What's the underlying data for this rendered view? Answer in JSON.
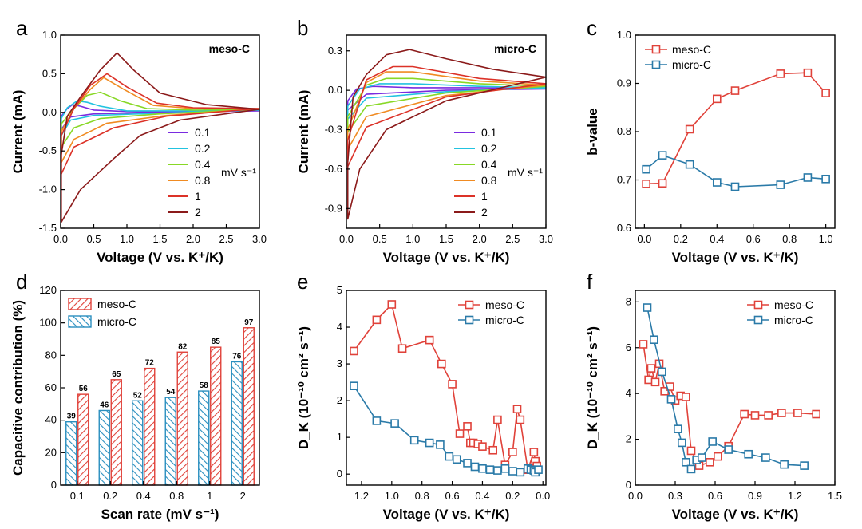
{
  "panel_letters": [
    "a",
    "b",
    "c",
    "d",
    "e",
    "f"
  ],
  "chart_data": [
    {
      "panel": "a",
      "type": "line",
      "label": "meso-C",
      "xlabel": "Voltage (V vs. K⁺/K)",
      "ylabel": "Current (mA)",
      "xlim": [
        0,
        3.0
      ],
      "ylim": [
        -1.5,
        1.0
      ],
      "xticks": [
        0.0,
        0.5,
        1.0,
        1.5,
        2.0,
        2.5,
        3.0
      ],
      "yticks": [
        -1.5,
        -1.0,
        -0.5,
        0.0,
        0.5,
        1.0
      ],
      "legend_unit": "mV s⁻¹",
      "legend_position": "lower-right",
      "series": [
        {
          "name": "0.1",
          "color": "#7a2be0",
          "values": [
            [
              0.01,
              -0.22
            ],
            [
              0.15,
              -0.06
            ],
            [
              0.5,
              -0.02
            ],
            [
              1.5,
              0.0
            ],
            [
              3.0,
              0.02
            ],
            [
              2.0,
              0.01
            ],
            [
              1.0,
              0.01
            ],
            [
              0.5,
              0.03
            ],
            [
              0.3,
              0.08
            ],
            [
              0.18,
              0.1
            ],
            [
              0.1,
              0.05
            ],
            [
              0.01,
              -0.05
            ]
          ]
        },
        {
          "name": "0.2",
          "color": "#22c3e0",
          "values": [
            [
              0.01,
              -0.3
            ],
            [
              0.15,
              -0.1
            ],
            [
              0.5,
              -0.04
            ],
            [
              1.5,
              -0.01
            ],
            [
              3.0,
              0.03
            ],
            [
              2.0,
              0.02
            ],
            [
              1.0,
              0.02
            ],
            [
              0.6,
              0.08
            ],
            [
              0.4,
              0.13
            ],
            [
              0.25,
              0.15
            ],
            [
              0.1,
              0.06
            ],
            [
              0.01,
              -0.08
            ]
          ]
        },
        {
          "name": "0.4",
          "color": "#88d826",
          "values": [
            [
              0.01,
              -0.45
            ],
            [
              0.2,
              -0.2
            ],
            [
              0.6,
              -0.08
            ],
            [
              1.5,
              -0.02
            ],
            [
              3.0,
              0.04
            ],
            [
              2.0,
              0.03
            ],
            [
              1.3,
              0.05
            ],
            [
              0.9,
              0.15
            ],
            [
              0.6,
              0.26
            ],
            [
              0.4,
              0.22
            ],
            [
              0.2,
              0.05
            ],
            [
              0.01,
              -0.15
            ]
          ]
        },
        {
          "name": "0.8",
          "color": "#f08b22",
          "values": [
            [
              0.01,
              -0.65
            ],
            [
              0.2,
              -0.35
            ],
            [
              0.7,
              -0.14
            ],
            [
              1.6,
              -0.04
            ],
            [
              3.0,
              0.05
            ],
            [
              2.0,
              0.05
            ],
            [
              1.4,
              0.09
            ],
            [
              0.95,
              0.3
            ],
            [
              0.65,
              0.45
            ],
            [
              0.45,
              0.3
            ],
            [
              0.2,
              0.05
            ],
            [
              0.01,
              -0.25
            ]
          ]
        },
        {
          "name": "1",
          "color": "#dc3228",
          "values": [
            [
              0.01,
              -0.8
            ],
            [
              0.2,
              -0.45
            ],
            [
              0.8,
              -0.2
            ],
            [
              1.6,
              -0.05
            ],
            [
              3.0,
              0.05
            ],
            [
              2.0,
              0.06
            ],
            [
              1.45,
              0.12
            ],
            [
              1.0,
              0.33
            ],
            [
              0.7,
              0.5
            ],
            [
              0.45,
              0.35
            ],
            [
              0.2,
              0.05
            ],
            [
              0.01,
              -0.3
            ]
          ]
        },
        {
          "name": "2",
          "color": "#8b1a1a",
          "values": [
            [
              0.01,
              -1.42
            ],
            [
              0.3,
              -1.0
            ],
            [
              0.8,
              -0.6
            ],
            [
              1.2,
              -0.3
            ],
            [
              1.8,
              -0.1
            ],
            [
              3.0,
              0.04
            ],
            [
              2.2,
              0.1
            ],
            [
              1.5,
              0.25
            ],
            [
              1.1,
              0.55
            ],
            [
              0.85,
              0.77
            ],
            [
              0.6,
              0.55
            ],
            [
              0.3,
              0.2
            ],
            [
              0.1,
              -0.05
            ],
            [
              0.01,
              -0.55
            ]
          ]
        }
      ]
    },
    {
      "panel": "b",
      "type": "line",
      "label": "micro-C",
      "xlabel": "Voltage (V vs. K⁺/K)",
      "ylabel": "Current (mA)",
      "xlim": [
        0,
        3.0
      ],
      "ylim": [
        -1.05,
        0.42
      ],
      "xticks": [
        0.0,
        0.5,
        1.0,
        1.5,
        2.0,
        2.5,
        3.0
      ],
      "yticks": [
        -0.9,
        -0.6,
        -0.3,
        0.0,
        0.3
      ],
      "legend_unit": "mV s⁻¹",
      "legend_position": "lower-right",
      "series": [
        {
          "name": "0.1",
          "color": "#7a2be0",
          "values": [
            [
              0.02,
              -0.15
            ],
            [
              0.3,
              -0.03
            ],
            [
              1.5,
              0.0
            ],
            [
              3.0,
              0.01
            ],
            [
              2.0,
              0.02
            ],
            [
              1.0,
              0.02
            ],
            [
              0.4,
              0.03
            ],
            [
              0.15,
              0.01
            ],
            [
              0.02,
              -0.08
            ]
          ]
        },
        {
          "name": "0.2",
          "color": "#22c3e0",
          "values": [
            [
              0.02,
              -0.22
            ],
            [
              0.3,
              -0.06
            ],
            [
              1.5,
              -0.01
            ],
            [
              3.0,
              0.02
            ],
            [
              2.0,
              0.03
            ],
            [
              1.0,
              0.05
            ],
            [
              0.5,
              0.05
            ],
            [
              0.2,
              0.01
            ],
            [
              0.02,
              -0.12
            ]
          ]
        },
        {
          "name": "0.4",
          "color": "#88d826",
          "values": [
            [
              0.02,
              -0.32
            ],
            [
              0.3,
              -0.12
            ],
            [
              1.5,
              -0.02
            ],
            [
              3.0,
              0.03
            ],
            [
              2.0,
              0.05
            ],
            [
              1.0,
              0.09
            ],
            [
              0.6,
              0.09
            ],
            [
              0.3,
              0.04
            ],
            [
              0.02,
              -0.2
            ]
          ]
        },
        {
          "name": "0.8",
          "color": "#f08b22",
          "values": [
            [
              0.02,
              -0.45
            ],
            [
              0.3,
              -0.2
            ],
            [
              1.5,
              -0.04
            ],
            [
              3.0,
              0.04
            ],
            [
              2.0,
              0.07
            ],
            [
              1.0,
              0.14
            ],
            [
              0.6,
              0.14
            ],
            [
              0.3,
              0.06
            ],
            [
              0.02,
              -0.3
            ]
          ]
        },
        {
          "name": "1",
          "color": "#dc3228",
          "values": [
            [
              0.02,
              -0.58
            ],
            [
              0.3,
              -0.28
            ],
            [
              1.5,
              -0.05
            ],
            [
              3.0,
              0.05
            ],
            [
              2.0,
              0.09
            ],
            [
              1.0,
              0.18
            ],
            [
              0.7,
              0.18
            ],
            [
              0.3,
              0.08
            ],
            [
              0.02,
              -0.38
            ]
          ]
        },
        {
          "name": "2",
          "color": "#8b1a1a",
          "values": [
            [
              0.02,
              -0.98
            ],
            [
              0.2,
              -0.6
            ],
            [
              0.6,
              -0.3
            ],
            [
              1.5,
              -0.08
            ],
            [
              3.0,
              0.1
            ],
            [
              2.2,
              0.16
            ],
            [
              1.5,
              0.24
            ],
            [
              0.95,
              0.31
            ],
            [
              0.6,
              0.27
            ],
            [
              0.3,
              0.12
            ],
            [
              0.1,
              -0.05
            ],
            [
              0.02,
              -0.55
            ]
          ]
        }
      ]
    },
    {
      "panel": "c",
      "type": "line",
      "xlabel": "Voltage (V vs. K⁺/K)",
      "ylabel": "b-value",
      "xlim": [
        -0.05,
        1.05
      ],
      "ylim": [
        0.6,
        1.0
      ],
      "xticks": [
        0.0,
        0.2,
        0.4,
        0.6,
        0.8,
        1.0
      ],
      "yticks": [
        0.6,
        0.7,
        0.8,
        0.9,
        1.0
      ],
      "legend_position": "top-left",
      "markers": "open-square",
      "series": [
        {
          "name": "meso-C",
          "color": "#e0423a",
          "x": [
            0.01,
            0.1,
            0.25,
            0.4,
            0.5,
            0.75,
            0.9,
            1.0
          ],
          "values": [
            0.692,
            0.693,
            0.805,
            0.868,
            0.885,
            0.92,
            0.922,
            0.88
          ]
        },
        {
          "name": "micro-C",
          "color": "#2a7aa8",
          "x": [
            0.01,
            0.1,
            0.25,
            0.4,
            0.5,
            0.75,
            0.9,
            1.0
          ],
          "values": [
            0.722,
            0.751,
            0.732,
            0.695,
            0.686,
            0.69,
            0.705,
            0.702
          ]
        }
      ]
    },
    {
      "panel": "d",
      "type": "bar",
      "xlabel": "Scan rate (mV s⁻¹)",
      "ylabel": "Capacitive contribution (%)",
      "ylim": [
        0,
        120
      ],
      "yticks": [
        0,
        20,
        40,
        60,
        80,
        100,
        120
      ],
      "categories": [
        "0.1",
        "0.2",
        "0.4",
        "0.8",
        "1",
        "2"
      ],
      "legend_position": "top-left",
      "series": [
        {
          "name": "micro-C",
          "color": "#2a8fbf",
          "values": [
            39,
            46,
            52,
            54,
            58,
            76
          ]
        },
        {
          "name": "meso-C",
          "color": "#e0423a",
          "values": [
            56,
            65,
            72,
            82,
            85,
            97
          ]
        }
      ]
    },
    {
      "panel": "e",
      "type": "line",
      "xlabel": "Voltage (V vs. K⁺/K)",
      "ylabel": "D_K (10⁻¹⁰ cm² s⁻¹)",
      "xlim": [
        1.3,
        -0.02
      ],
      "ylim": [
        -0.3,
        5.0
      ],
      "xticks": [
        1.2,
        1.0,
        0.8,
        0.6,
        0.4,
        0.2,
        0.0
      ],
      "yticks": [
        0,
        1,
        2,
        3,
        4,
        5
      ],
      "legend_position": "top-right",
      "markers": "open-square",
      "series": [
        {
          "name": "meso-C",
          "color": "#e0423a",
          "x": [
            1.25,
            1.1,
            1.0,
            0.93,
            0.75,
            0.67,
            0.6,
            0.55,
            0.5,
            0.48,
            0.46,
            0.43,
            0.4,
            0.33,
            0.3,
            0.25,
            0.2,
            0.17,
            0.15,
            0.1,
            0.06,
            0.05,
            0.04
          ],
          "values": [
            3.35,
            4.2,
            4.62,
            3.42,
            3.65,
            3.0,
            2.45,
            1.1,
            1.3,
            0.85,
            0.85,
            0.82,
            0.75,
            0.65,
            1.48,
            0.25,
            0.6,
            1.77,
            1.48,
            0.12,
            0.6,
            0.35,
            0.22
          ]
        },
        {
          "name": "micro-C",
          "color": "#2a7aa8",
          "x": [
            1.25,
            1.1,
            0.98,
            0.85,
            0.75,
            0.68,
            0.62,
            0.57,
            0.5,
            0.45,
            0.4,
            0.35,
            0.3,
            0.25,
            0.2,
            0.15,
            0.1,
            0.08,
            0.06,
            0.05,
            0.03
          ],
          "values": [
            2.4,
            1.45,
            1.38,
            0.92,
            0.85,
            0.8,
            0.48,
            0.4,
            0.3,
            0.2,
            0.15,
            0.12,
            0.1,
            0.15,
            0.08,
            0.05,
            0.15,
            0.12,
            0.1,
            0.05,
            0.12
          ]
        }
      ]
    },
    {
      "panel": "f",
      "type": "line",
      "xlabel": "Voltage (V vs. K⁺/K)",
      "ylabel": "D_K (10⁻¹⁰ cm² s⁻¹)",
      "xlim": [
        0,
        1.5
      ],
      "ylim": [
        0,
        8.5
      ],
      "xticks": [
        0.0,
        0.3,
        0.6,
        0.9,
        1.2,
        1.5
      ],
      "yticks": [
        0,
        2,
        4,
        6,
        8
      ],
      "legend_position": "top-right",
      "markers": "open-square",
      "series": [
        {
          "name": "meso-C",
          "color": "#e0423a",
          "x": [
            0.06,
            0.1,
            0.12,
            0.15,
            0.18,
            0.22,
            0.26,
            0.3,
            0.34,
            0.38,
            0.42,
            0.48,
            0.56,
            0.62,
            0.7,
            0.82,
            0.9,
            1.0,
            1.1,
            1.22,
            1.36
          ],
          "values": [
            6.15,
            4.6,
            5.1,
            4.5,
            5.3,
            4.1,
            4.3,
            3.7,
            3.9,
            3.85,
            1.5,
            0.85,
            1.0,
            1.25,
            1.7,
            3.1,
            3.05,
            3.05,
            3.15,
            3.15,
            3.1
          ]
        },
        {
          "name": "micro-C",
          "color": "#2a7aa8",
          "x": [
            0.09,
            0.14,
            0.2,
            0.27,
            0.32,
            0.35,
            0.38,
            0.42,
            0.46,
            0.5,
            0.58,
            0.7,
            0.85,
            0.98,
            1.12,
            1.27
          ],
          "values": [
            7.75,
            6.35,
            4.95,
            3.75,
            2.45,
            1.85,
            1.0,
            0.7,
            1.1,
            1.2,
            1.9,
            1.55,
            1.35,
            1.2,
            0.9,
            0.85
          ]
        }
      ]
    }
  ]
}
